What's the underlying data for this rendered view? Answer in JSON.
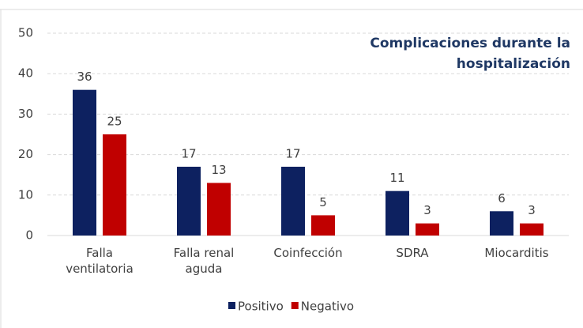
{
  "chart_data": {
    "type": "bar",
    "title": "Complicaciones durante la hospitalización",
    "categories": [
      "Falla ventilatoria",
      "Falla renal aguda",
      "Coinfección",
      "SDRA",
      "Miocarditis"
    ],
    "series": [
      {
        "name": "Positivo",
        "color": "#0d2160",
        "values": [
          36,
          17,
          17,
          11,
          6
        ]
      },
      {
        "name": "Negativo",
        "color": "#c00000",
        "values": [
          25,
          13,
          5,
          3,
          3
        ]
      }
    ],
    "ylim": [
      0,
      50
    ],
    "yticks": [
      0,
      10,
      20,
      30,
      40,
      50
    ],
    "grid": true,
    "legend": "bottom"
  }
}
